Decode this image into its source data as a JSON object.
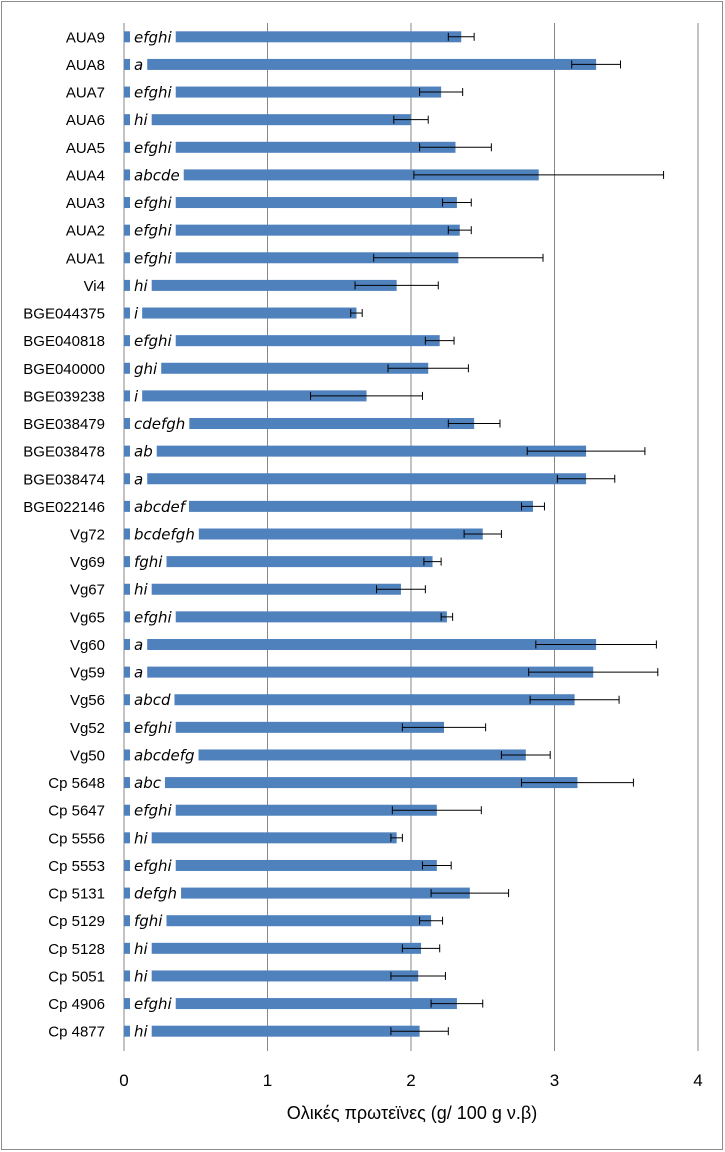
{
  "chart_data": {
    "type": "bar",
    "orientation": "horizontal",
    "categories": [
      "AUA9",
      "AUA8",
      "AUA7",
      "AUA6",
      "AUA5",
      "AUA4",
      "AUA3",
      "AUA2",
      "AUA1",
      "Vi4",
      "BGE044375",
      "BGE040818",
      "BGE040000",
      "BGE039238",
      "BGE038479",
      "BGE038478",
      "BGE038474",
      "BGE022146",
      "Vg72",
      "Vg69",
      "Vg67",
      "Vg65",
      "Vg60",
      "Vg59",
      "Vg56",
      "Vg52",
      "Vg50",
      "Cp 5648",
      "Cp 5647",
      "Cp 5556",
      "Cp 5553",
      "Cp 5131",
      "Cp 5129",
      "Cp 5128",
      "Cp 5051",
      "Cp 4906",
      "Cp 4877"
    ],
    "values": [
      2.35,
      3.29,
      2.21,
      2.0,
      2.31,
      2.89,
      2.32,
      2.34,
      2.33,
      1.9,
      1.62,
      2.2,
      2.12,
      1.69,
      2.44,
      3.22,
      3.22,
      2.85,
      2.5,
      2.15,
      1.93,
      2.25,
      3.29,
      3.27,
      3.14,
      2.23,
      2.8,
      3.16,
      2.18,
      1.9,
      2.18,
      2.41,
      2.14,
      2.07,
      2.05,
      2.32,
      2.06
    ],
    "errors": [
      0.09,
      0.17,
      0.15,
      0.12,
      0.25,
      0.87,
      0.1,
      0.08,
      0.59,
      0.29,
      0.04,
      0.1,
      0.28,
      0.39,
      0.18,
      0.41,
      0.2,
      0.08,
      0.13,
      0.06,
      0.17,
      0.04,
      0.42,
      0.45,
      0.31,
      0.29,
      0.17,
      0.39,
      0.31,
      0.04,
      0.1,
      0.27,
      0.08,
      0.13,
      0.19,
      0.18,
      0.2
    ],
    "group_labels": [
      "efghi",
      "a",
      "efghi",
      "hi",
      "efghi",
      "abcde",
      "efghi",
      "efghi",
      "efghi",
      "hi",
      "i",
      "efghi",
      "ghi",
      "i",
      "cdefgh",
      "ab",
      "a",
      "abcdef",
      "bcdefgh",
      "fghi",
      "hi",
      "efghi",
      "a",
      "a",
      "abcd",
      "efghi",
      "abcdefg",
      "abc",
      "efghi",
      "hi",
      "efghi",
      "defgh",
      "fghi",
      "hi",
      "hi",
      "efghi",
      "hi"
    ],
    "xlabel": "Ολικές πρωτεϊνες (g/ 100 g ν.β)",
    "xlim": [
      0,
      4
    ],
    "xticks": [
      "0",
      "1",
      "2",
      "3",
      "4"
    ],
    "grid": true,
    "colors": {
      "bar": "#4f81bd",
      "grid": "#878787",
      "axis": "#878787",
      "error": "#000000"
    }
  }
}
